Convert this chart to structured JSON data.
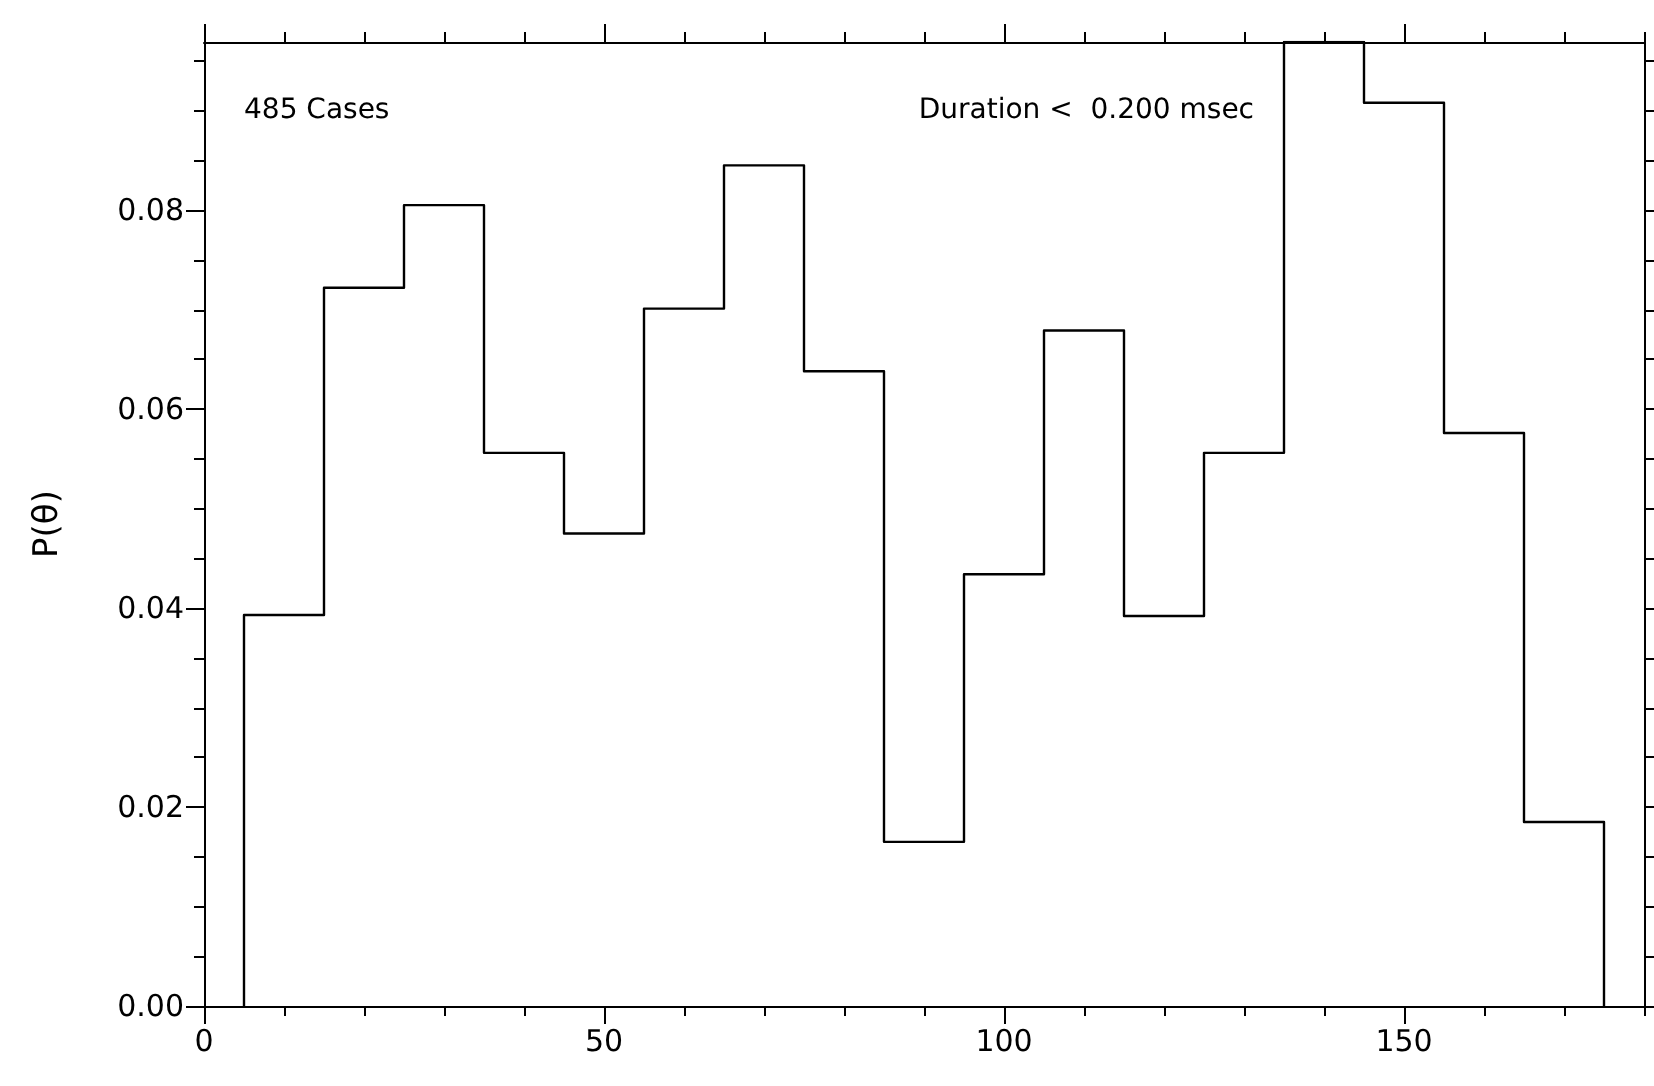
{
  "chart_data": {
    "type": "histogram",
    "ylabel": "P(θ)",
    "annotations": [
      "485 Cases",
      "Duration <  0.200 msec"
    ],
    "bins": [
      5,
      15,
      25,
      35,
      45,
      55,
      65,
      75,
      85,
      95,
      105,
      115,
      125,
      135,
      145,
      155,
      165,
      175
    ],
    "values": [
      0.0393,
      0.0722,
      0.0805,
      0.0556,
      0.0475,
      0.0701,
      0.0845,
      0.0638,
      0.0165,
      0.0434,
      0.0679,
      0.0392,
      0.0556,
      0.0969,
      0.0908,
      0.0576,
      0.0185
    ],
    "color": "#000000",
    "xlim": [
      0,
      180
    ],
    "xticks": [
      0,
      {
        "value": 10,
        "label": null
      },
      {
        "value": 20,
        "label": null
      },
      {
        "value": 30,
        "label": null
      },
      {
        "value": 40,
        "label": null
      },
      50,
      {
        "value": 60,
        "label": null
      },
      {
        "value": 70,
        "label": null
      },
      {
        "value": 80,
        "label": null
      },
      {
        "value": 90,
        "label": null
      },
      100,
      {
        "value": 110,
        "label": null
      },
      {
        "value": 120,
        "label": null
      },
      {
        "value": 130,
        "label": null
      },
      {
        "value": 140,
        "label": null
      },
      150,
      {
        "value": 160,
        "label": null
      },
      {
        "value": 170,
        "label": null
      },
      {
        "value": 180,
        "label": null
      }
    ],
    "ylim": [
      0,
      0.0969
    ],
    "grid": false,
    "yticks": [
      {
        "value": 0,
        "label": "0.00"
      },
      {
        "value": 0.005,
        "label": null
      },
      {
        "value": 0.01,
        "label": null
      },
      {
        "value": 0.015,
        "label": null
      },
      {
        "value": 0.02,
        "label": "0.02"
      },
      {
        "value": 0.025,
        "label": null
      },
      {
        "value": 0.03,
        "label": null
      },
      {
        "value": 0.035,
        "label": null
      },
      {
        "value": 0.04,
        "label": "0.04"
      },
      {
        "value": 0.045,
        "label": null
      },
      {
        "value": 0.05,
        "label": null
      },
      {
        "value": 0.055,
        "label": null
      },
      {
        "value": 0.06,
        "label": "0.06"
      },
      {
        "value": 0.065,
        "label": null
      },
      {
        "value": 0.07,
        "label": null
      },
      {
        "value": 0.075,
        "label": null
      },
      {
        "value": 0.08,
        "label": "0.08"
      },
      {
        "value": 0.085,
        "label": null
      },
      {
        "value": 0.09,
        "label": null
      },
      {
        "value": 0.095,
        "label": null
      }
    ],
    "xlabel": null
  }
}
